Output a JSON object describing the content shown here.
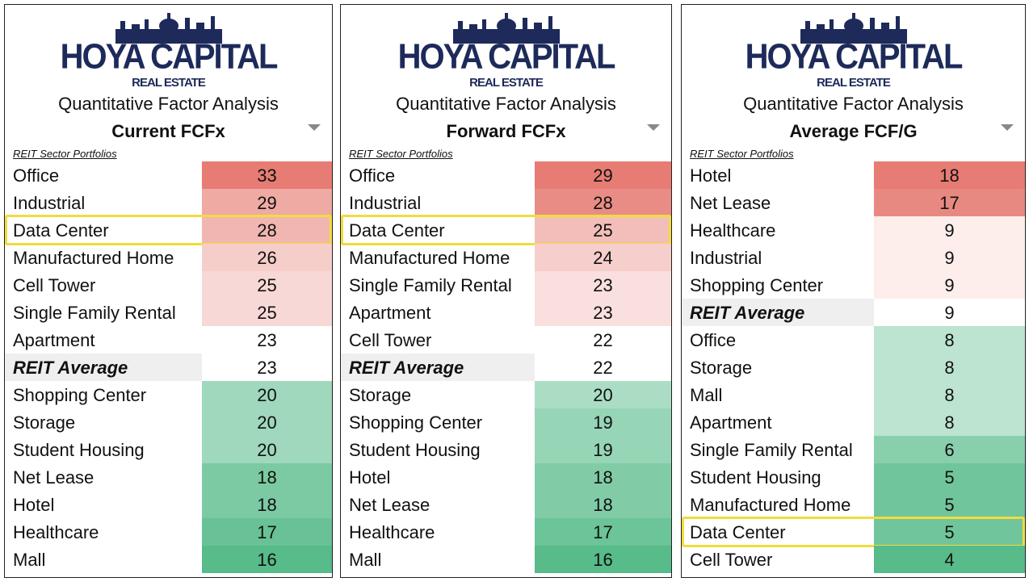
{
  "panels": [
    {
      "logo": "HOYA CAPITAL",
      "logo_sub": "REAL ESTATE",
      "title": "Quantitative Factor Analysis",
      "subtitle": "Current FCFx",
      "section_label": "REIT Sector Portfolios",
      "rows": [
        {
          "name": "Office",
          "value": 33
        },
        {
          "name": "Industrial",
          "value": 29
        },
        {
          "name": "Data Center",
          "value": 28,
          "highlight": true
        },
        {
          "name": "Manufactured Home",
          "value": 26
        },
        {
          "name": "Cell Tower",
          "value": 25
        },
        {
          "name": "Single Family Rental",
          "value": 25
        },
        {
          "name": "Apartment",
          "value": 23
        },
        {
          "name": "REIT Average",
          "value": 23,
          "emphasis": true
        },
        {
          "name": "Shopping Center",
          "value": 20
        },
        {
          "name": "Storage",
          "value": 20
        },
        {
          "name": "Student Housing",
          "value": 20
        },
        {
          "name": "Net Lease",
          "value": 18
        },
        {
          "name": "Hotel",
          "value": 18
        },
        {
          "name": "Healthcare",
          "value": 17
        },
        {
          "name": "Mall",
          "value": 16
        }
      ]
    },
    {
      "logo": "HOYA CAPITAL",
      "logo_sub": "REAL ESTATE",
      "title": "Quantitative Factor Analysis",
      "subtitle": "Forward FCFx",
      "section_label": "REIT Sector Portfolios",
      "rows": [
        {
          "name": "Office",
          "value": 29
        },
        {
          "name": "Industrial",
          "value": 28
        },
        {
          "name": "Data Center",
          "value": 25,
          "highlight": true
        },
        {
          "name": "Manufactured Home",
          "value": 24
        },
        {
          "name": "Single Family Rental",
          "value": 23
        },
        {
          "name": "Apartment",
          "value": 23
        },
        {
          "name": "Cell Tower",
          "value": 22
        },
        {
          "name": "REIT Average",
          "value": 22,
          "emphasis": true
        },
        {
          "name": "Storage",
          "value": 20
        },
        {
          "name": "Shopping Center",
          "value": 19
        },
        {
          "name": "Student Housing",
          "value": 19
        },
        {
          "name": "Hotel",
          "value": 18
        },
        {
          "name": "Net Lease",
          "value": 18
        },
        {
          "name": "Healthcare",
          "value": 17
        },
        {
          "name": "Mall",
          "value": 16
        }
      ]
    },
    {
      "logo": "HOYA CAPITAL",
      "logo_sub": "REAL ESTATE",
      "title": "Quantitative Factor Analysis",
      "subtitle": "Average FCF/G",
      "section_label": "REIT Sector Portfolios",
      "rows": [
        {
          "name": "Hotel",
          "value": 18
        },
        {
          "name": "Net Lease",
          "value": 17
        },
        {
          "name": "Healthcare",
          "value": 9
        },
        {
          "name": "Industrial",
          "value": 9
        },
        {
          "name": "Shopping Center",
          "value": 9
        },
        {
          "name": "REIT Average",
          "value": 9,
          "emphasis": true
        },
        {
          "name": "Office",
          "value": 8
        },
        {
          "name": "Storage",
          "value": 8
        },
        {
          "name": "Mall",
          "value": 8
        },
        {
          "name": "Apartment",
          "value": 8
        },
        {
          "name": "Single Family Rental",
          "value": 6
        },
        {
          "name": "Student Housing",
          "value": 5
        },
        {
          "name": "Manufactured Home",
          "value": 5
        },
        {
          "name": "Data Center",
          "value": 5,
          "highlight": true
        },
        {
          "name": "Cell Tower",
          "value": 4
        }
      ]
    }
  ]
}
